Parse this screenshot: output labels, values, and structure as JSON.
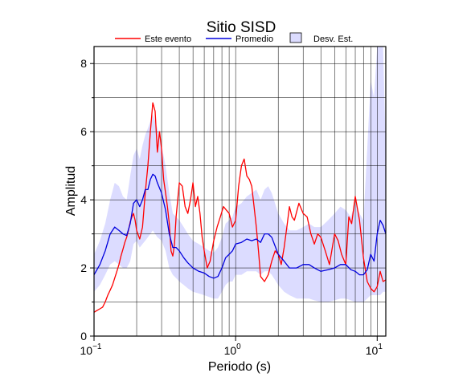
{
  "chart_data": {
    "type": "line",
    "title": "Sitio SISD",
    "xlabel": "Periodo (s)",
    "ylabel": "Amplitud",
    "x_scale": "log",
    "xlim": [
      0.1,
      11.5
    ],
    "ylim": [
      0,
      8.5
    ],
    "x_ticks": [
      {
        "value": 0.1,
        "base": "10",
        "exp": "−1"
      },
      {
        "value": 1,
        "base": "10",
        "exp": "0"
      },
      {
        "value": 10,
        "base": "10",
        "exp": "1"
      }
    ],
    "y_ticks": [
      {
        "value": 0,
        "label": "0"
      },
      {
        "value": 2,
        "label": "2"
      },
      {
        "value": 4,
        "label": "4"
      },
      {
        "value": 6,
        "label": "6"
      },
      {
        "value": 8,
        "label": "8"
      }
    ],
    "grid": true,
    "legend_position": "top",
    "legend": [
      {
        "label": "Este evento",
        "kind": "line",
        "color": "#ff0000"
      },
      {
        "label": "Promedio",
        "kind": "line",
        "color": "#0000dd"
      },
      {
        "label": "Desv. Est.",
        "kind": "patch",
        "color": "#dcdcff"
      }
    ],
    "series": [
      {
        "name": "Este evento",
        "color": "#ff0000",
        "x": [
          0.1,
          0.105,
          0.11,
          0.115,
          0.12,
          0.125,
          0.13,
          0.135,
          0.14,
          0.145,
          0.15,
          0.155,
          0.16,
          0.165,
          0.17,
          0.175,
          0.18,
          0.185,
          0.19,
          0.195,
          0.2,
          0.21,
          0.22,
          0.23,
          0.24,
          0.25,
          0.26,
          0.27,
          0.28,
          0.29,
          0.3,
          0.31,
          0.32,
          0.33,
          0.34,
          0.35,
          0.36,
          0.37,
          0.38,
          0.4,
          0.42,
          0.44,
          0.46,
          0.48,
          0.5,
          0.52,
          0.54,
          0.56,
          0.58,
          0.6,
          0.63,
          0.66,
          0.7,
          0.74,
          0.78,
          0.82,
          0.86,
          0.9,
          0.95,
          1.0,
          1.05,
          1.1,
          1.15,
          1.2,
          1.25,
          1.3,
          1.35,
          1.4,
          1.45,
          1.5,
          1.6,
          1.7,
          1.8,
          1.9,
          2.0,
          2.1,
          2.2,
          2.3,
          2.4,
          2.5,
          2.6,
          2.8,
          3.0,
          3.2,
          3.4,
          3.6,
          3.8,
          4.0,
          4.3,
          4.6,
          5.0,
          5.3,
          5.6,
          6.0,
          6.3,
          6.6,
          7.0,
          7.5,
          8.0,
          8.5,
          9.0,
          9.5,
          10.0,
          10.5,
          11.0,
          11.5
        ],
        "y": [
          0.7,
          0.75,
          0.8,
          0.85,
          1.0,
          1.2,
          1.35,
          1.5,
          1.7,
          1.9,
          2.1,
          2.35,
          2.55,
          2.75,
          2.9,
          3.1,
          3.35,
          3.5,
          3.6,
          3.4,
          3.1,
          2.85,
          3.2,
          4.2,
          5.0,
          6.0,
          6.85,
          6.6,
          5.4,
          6.0,
          5.5,
          4.6,
          4.2,
          3.8,
          3.3,
          2.5,
          2.35,
          2.7,
          3.5,
          4.5,
          4.4,
          3.8,
          3.6,
          4.0,
          4.5,
          3.8,
          4.1,
          3.6,
          2.9,
          2.5,
          2.0,
          2.2,
          2.8,
          3.2,
          3.5,
          3.8,
          3.7,
          3.6,
          3.2,
          3.4,
          4.4,
          5.0,
          5.2,
          4.7,
          4.6,
          4.4,
          3.8,
          3.2,
          2.5,
          1.75,
          1.6,
          1.8,
          2.2,
          2.5,
          2.4,
          2.1,
          2.6,
          3.2,
          3.8,
          3.5,
          3.4,
          3.9,
          3.6,
          3.5,
          3.0,
          2.7,
          3.0,
          2.9,
          2.5,
          2.1,
          3.0,
          2.8,
          2.4,
          2.1,
          3.5,
          3.3,
          4.1,
          3.4,
          2.3,
          1.6,
          1.4,
          1.3,
          1.45,
          1.9,
          1.6,
          1.65
        ]
      },
      {
        "name": "Promedio",
        "color": "#0000dd",
        "x": [
          0.1,
          0.11,
          0.12,
          0.13,
          0.14,
          0.15,
          0.16,
          0.17,
          0.18,
          0.19,
          0.2,
          0.21,
          0.22,
          0.23,
          0.24,
          0.25,
          0.26,
          0.27,
          0.28,
          0.3,
          0.32,
          0.34,
          0.36,
          0.38,
          0.4,
          0.43,
          0.46,
          0.5,
          0.55,
          0.6,
          0.65,
          0.7,
          0.75,
          0.8,
          0.85,
          0.9,
          0.95,
          1.0,
          1.1,
          1.2,
          1.3,
          1.4,
          1.5,
          1.6,
          1.7,
          1.8,
          2.0,
          2.2,
          2.4,
          2.7,
          3.0,
          3.3,
          3.6,
          4.0,
          4.5,
          5.0,
          5.5,
          6.0,
          6.5,
          7.0,
          7.5,
          8.0,
          8.5,
          9.0,
          9.5,
          10.0,
          10.5,
          11.0,
          11.5
        ],
        "y": [
          1.8,
          2.1,
          2.5,
          3.0,
          3.2,
          3.1,
          3.0,
          2.95,
          3.3,
          3.9,
          4.0,
          3.8,
          4.0,
          4.3,
          4.3,
          4.6,
          4.75,
          4.7,
          4.5,
          4.2,
          3.7,
          3.0,
          2.6,
          2.6,
          2.5,
          2.3,
          2.15,
          2.0,
          1.9,
          1.85,
          1.75,
          1.7,
          1.75,
          2.0,
          2.3,
          2.4,
          2.5,
          2.7,
          2.75,
          2.85,
          2.8,
          2.85,
          2.75,
          3.0,
          3.0,
          2.9,
          2.4,
          2.2,
          2.0,
          2.0,
          2.1,
          2.1,
          2.0,
          1.9,
          1.95,
          2.0,
          2.1,
          2.1,
          1.95,
          1.9,
          1.8,
          1.8,
          1.95,
          2.4,
          2.2,
          3.0,
          3.4,
          3.25,
          3.0
        ]
      }
    ],
    "band": {
      "name": "Desv. Est.",
      "color": "#dcdcff",
      "x": [
        0.1,
        0.11,
        0.12,
        0.13,
        0.14,
        0.15,
        0.16,
        0.17,
        0.18,
        0.19,
        0.2,
        0.21,
        0.22,
        0.23,
        0.24,
        0.25,
        0.26,
        0.27,
        0.28,
        0.3,
        0.32,
        0.34,
        0.36,
        0.38,
        0.4,
        0.43,
        0.46,
        0.5,
        0.55,
        0.6,
        0.65,
        0.7,
        0.75,
        0.8,
        0.85,
        0.9,
        0.95,
        1.0,
        1.1,
        1.2,
        1.3,
        1.4,
        1.5,
        1.6,
        1.7,
        1.8,
        2.0,
        2.2,
        2.4,
        2.7,
        3.0,
        3.3,
        3.6,
        4.0,
        4.5,
        5.0,
        5.5,
        6.0,
        6.5,
        7.0,
        7.5,
        8.0,
        8.5,
        9.0,
        9.5,
        10.0,
        10.5,
        11.0,
        11.5
      ],
      "lower": [
        1.3,
        1.5,
        1.8,
        2.1,
        2.2,
        2.1,
        2.0,
        2.0,
        2.2,
        2.7,
        2.8,
        2.6,
        2.7,
        2.8,
        2.9,
        3.0,
        3.1,
        3.0,
        2.9,
        2.8,
        2.5,
        2.0,
        1.8,
        1.7,
        1.6,
        1.5,
        1.4,
        1.3,
        1.25,
        1.2,
        1.15,
        1.1,
        1.1,
        1.3,
        1.5,
        1.6,
        1.6,
        1.8,
        1.8,
        1.9,
        1.9,
        1.9,
        1.8,
        1.9,
        1.9,
        1.8,
        1.5,
        1.3,
        1.2,
        1.1,
        1.1,
        1.1,
        1.05,
        1.0,
        1.0,
        1.05,
        1.1,
        1.1,
        1.05,
        1.0,
        1.0,
        1.0,
        1.1,
        1.2,
        1.2,
        1.2,
        1.2,
        1.3,
        1.3
      ],
      "upper": [
        2.4,
        2.8,
        3.3,
        4.0,
        4.5,
        4.4,
        4.1,
        4.0,
        4.7,
        5.3,
        5.5,
        5.2,
        5.6,
        5.9,
        6.1,
        6.3,
        6.5,
        6.3,
        6.1,
        5.6,
        5.0,
        4.2,
        3.6,
        3.5,
        3.4,
        3.2,
        3.0,
        2.8,
        2.7,
        2.6,
        2.5,
        2.45,
        2.6,
        2.9,
        3.3,
        3.4,
        3.5,
        3.8,
        3.9,
        4.1,
        4.2,
        4.3,
        4.0,
        4.3,
        4.4,
        4.2,
        3.6,
        3.3,
        3.1,
        3.1,
        3.2,
        3.3,
        3.2,
        3.2,
        3.4,
        3.6,
        3.8,
        3.7,
        3.5,
        3.9,
        3.6,
        3.4,
        5.5,
        7.5,
        7.0,
        8.5,
        8.5,
        8.5,
        5.5
      ]
    }
  }
}
